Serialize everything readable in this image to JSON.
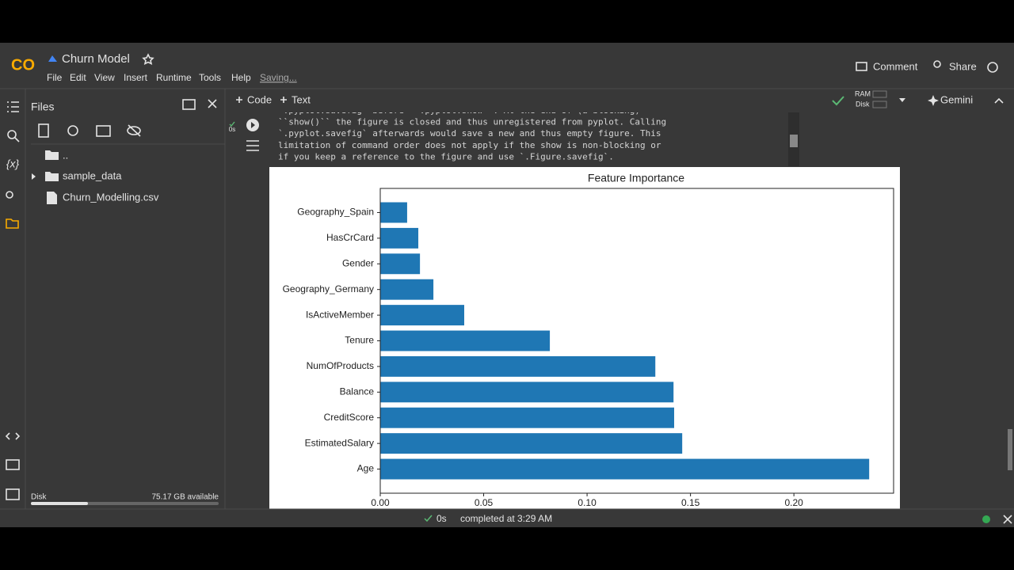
{
  "app": {
    "logo": "CO",
    "title": "Churn Model",
    "menu": [
      "File",
      "Edit",
      "View",
      "Insert",
      "Runtime",
      "Tools",
      "Help"
    ],
    "save_status": "Saving...",
    "comment": "Comment",
    "share": "Share"
  },
  "toolbar": {
    "code": "Code",
    "text": "Text",
    "ram": "RAM",
    "disk": "Disk",
    "gemini": "Gemini"
  },
  "sidebar": {
    "title": "Files",
    "variables_icon": "{x}",
    "tree": [
      "..",
      "sample_data",
      "Churn_Modelling.csv"
    ],
    "disk_label": "Disk",
    "disk_free": "75.17 GB available"
  },
  "cell": {
    "exec_time": "0s",
    "output_lines": [
      "`.pyplot.savefig` before ``.pyplot.show``. At the end of (a blocking)",
      "``show()`` the figure is closed and thus unregistered from pyplot. Calling",
      "`.pyplot.savefig` afterwards would save a new and thus empty figure. This",
      "limitation of command order does not apply if the show is non-blocking or",
      "if you keep a reference to the figure and use `.Figure.savefig`."
    ]
  },
  "chart_data": {
    "type": "barh",
    "title": "Feature Importance",
    "categories": [
      "Age",
      "EstimatedSalary",
      "CreditScore",
      "Balance",
      "NumOfProducts",
      "Tenure",
      "IsActiveMember",
      "Geography_Germany",
      "Gender",
      "HasCrCard",
      "Geography_Spain"
    ],
    "values": [
      0.2364,
      0.146,
      0.1421,
      0.1418,
      0.133,
      0.082,
      0.0406,
      0.0257,
      0.0192,
      0.0184,
      0.013
    ],
    "color": "#1f77b4",
    "xlim": [
      0,
      0.2482
    ],
    "xticks": [
      {
        "value": 0,
        "label": "0.00"
      },
      {
        "value": 0.05,
        "label": "0.05"
      },
      {
        "value": 0.1,
        "label": "0.10"
      },
      {
        "value": 0.15,
        "label": "0.15"
      },
      {
        "value": 0.2,
        "label": "0.20"
      }
    ]
  },
  "statusbar": {
    "time": "0s",
    "message": "completed at 3:29 AM"
  }
}
